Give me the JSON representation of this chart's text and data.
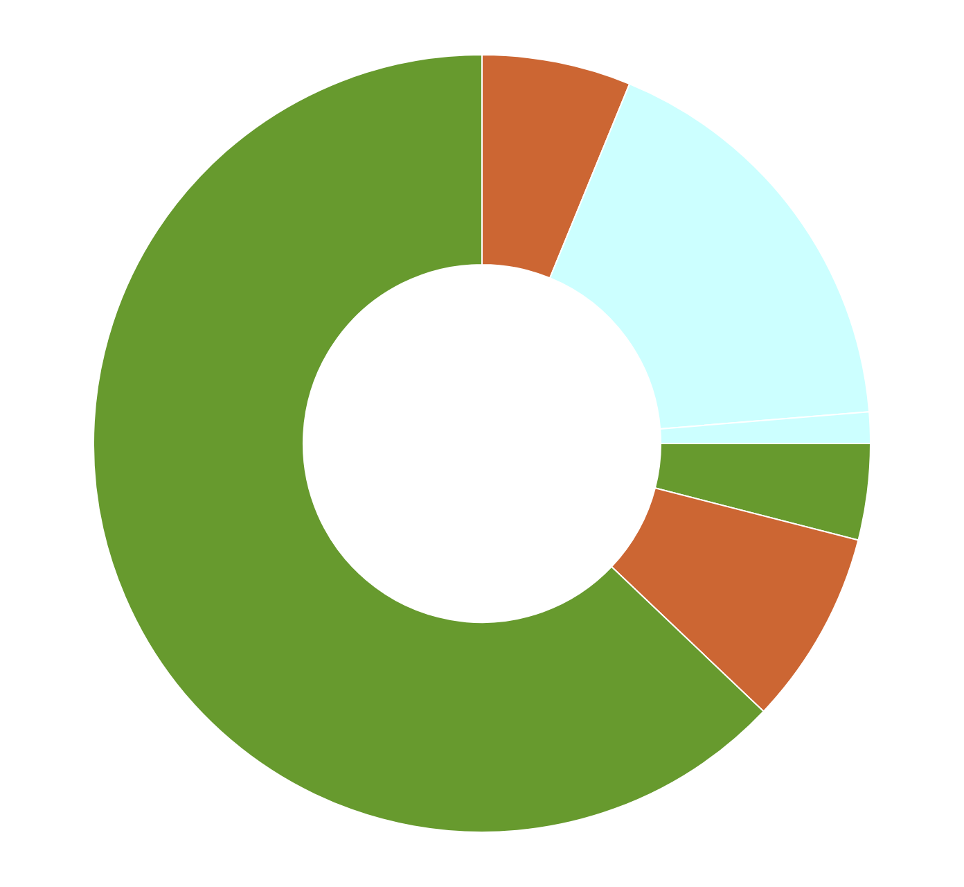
{
  "chart_data": {
    "type": "donut",
    "categories": [
      null,
      null,
      null,
      null,
      null,
      null
    ],
    "values": [
      6.2,
      17.5,
      1.3,
      4.0,
      8.1,
      62.9
    ],
    "colors": [
      "#cc6633",
      "#ccffff",
      "#ccffff",
      "#679a2e",
      "#cc6633",
      "#679a2e"
    ],
    "legend": false
  }
}
